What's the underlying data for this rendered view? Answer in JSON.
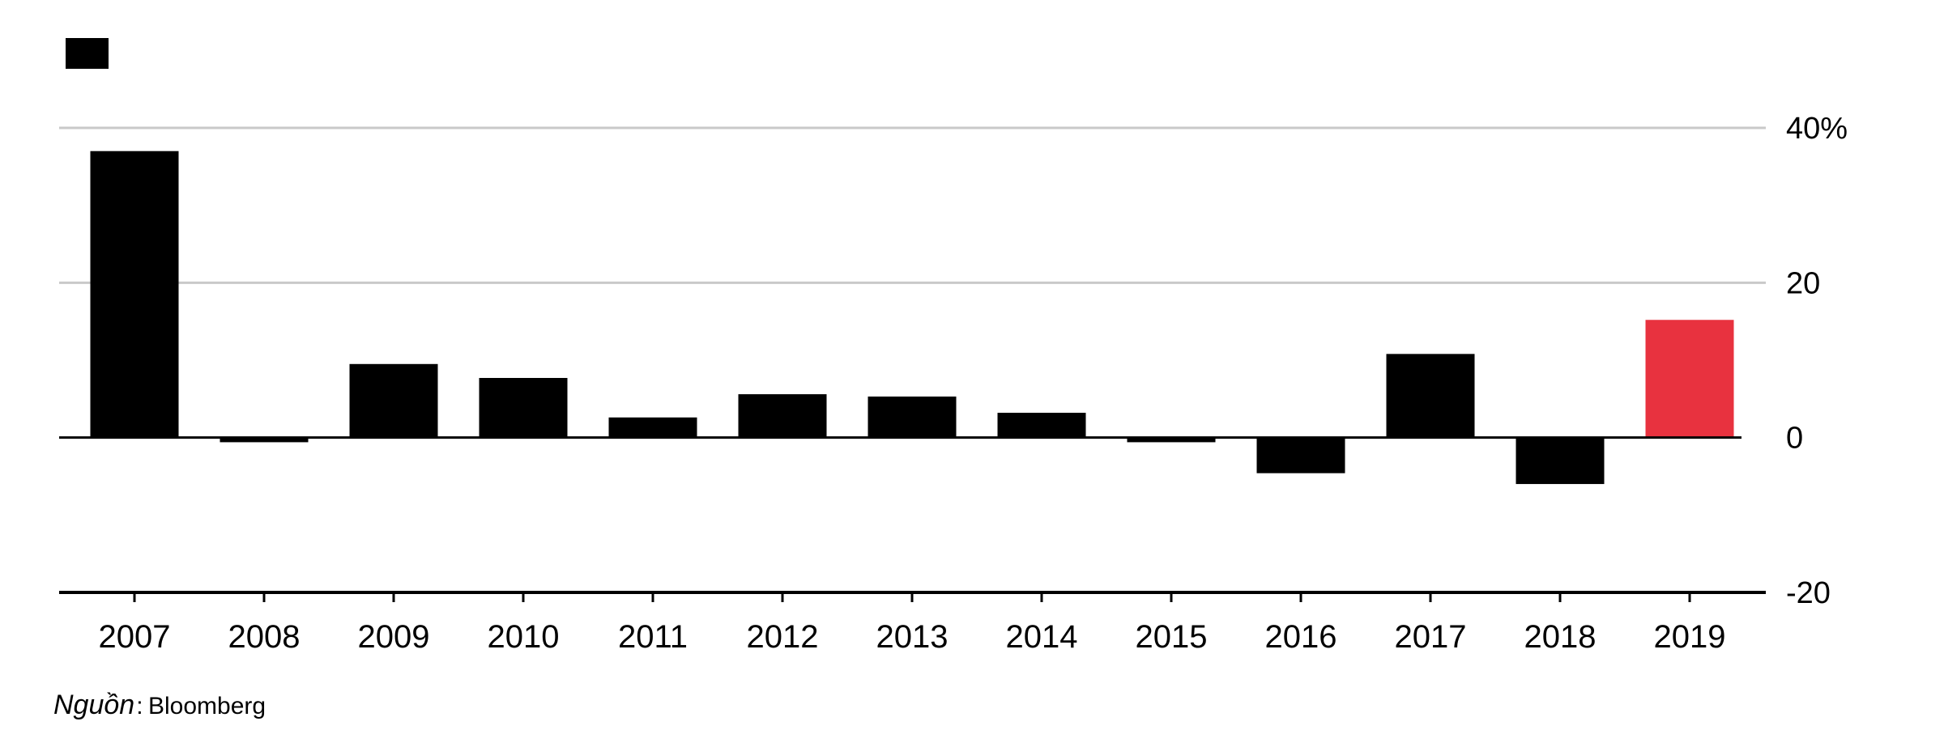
{
  "chart_data": {
    "type": "bar",
    "categories": [
      "2007",
      "2008",
      "2009",
      "2010",
      "2011",
      "2012",
      "2013",
      "2014",
      "2015",
      "2016",
      "2017",
      "2018",
      "2019"
    ],
    "values": [
      37,
      -0.6,
      9.5,
      7.7,
      2.6,
      5.6,
      5.3,
      3.2,
      -0.6,
      -4.6,
      10.8,
      -6.0,
      15.2
    ],
    "highlight": {
      "category": "2019",
      "color": "#e8323f"
    },
    "bar_color": "#000000",
    "grid": true,
    "ylim": [
      -20,
      40
    ],
    "yticks": [
      {
        "value": 40,
        "label": "40%"
      },
      {
        "value": 20,
        "label": "20"
      },
      {
        "value": 0,
        "label": "0"
      },
      {
        "value": -20,
        "label": "-20"
      }
    ],
    "y_axis_side": "right",
    "legend": {
      "swatch_color": "#000000",
      "label": "",
      "position": "top-left"
    }
  },
  "source": {
    "label": "Nguồn",
    "separator": ":",
    "name": "Bloomberg"
  }
}
